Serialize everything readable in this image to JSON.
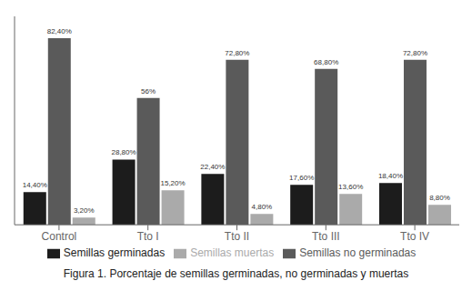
{
  "chart_data": {
    "type": "bar",
    "title": "Figura 1. Porcentaje de semillas germinadas, no germinadas y muertas",
    "categories": [
      "Control",
      "Tto I",
      "Tto II",
      "Tto III",
      "Tto IV"
    ],
    "series": [
      {
        "name": "Semillas germinadas",
        "color": "#1c1c1c",
        "values": [
          14.4,
          28.8,
          22.4,
          17.6,
          18.4
        ],
        "value_labels": [
          "14,40%",
          "28,80%",
          "22,40%",
          "17,60%",
          "18,40%"
        ]
      },
      {
        "name": "Semillas no germinadas",
        "color": "#5a5a5a",
        "values": [
          82.4,
          56.0,
          72.8,
          68.8,
          72.8
        ],
        "value_labels": [
          "82,40%",
          "56%",
          "72,80%",
          "68,80%",
          "72,80%"
        ]
      },
      {
        "name": "Semillas muertas",
        "color": "#aaaaaa",
        "values": [
          3.2,
          15.2,
          4.8,
          13.6,
          8.8
        ],
        "value_labels": [
          "3,20%",
          "15,20%",
          "4,80%",
          "13,60%",
          "8,80%"
        ]
      }
    ],
    "ylim": [
      0,
      92
    ],
    "grid": false,
    "legend": "bottom",
    "data_labels": true,
    "tick_labels": "x"
  }
}
